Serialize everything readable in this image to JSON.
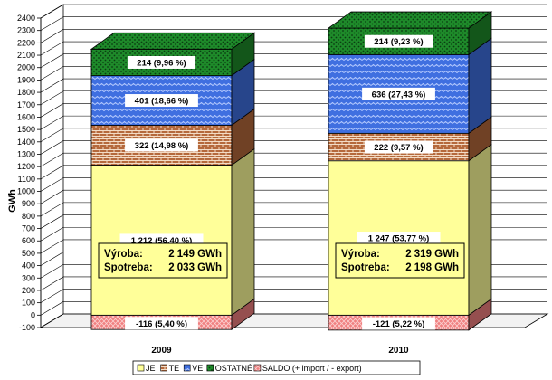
{
  "chart_data": {
    "type": "bar",
    "stacked": true,
    "three_d": true,
    "title": "",
    "xlabel": "",
    "ylabel": "GWh",
    "ylim": [
      -100,
      2400
    ],
    "ytick_step": 100,
    "grid": true,
    "legend_position": "bottom",
    "categories": [
      "2009",
      "2010"
    ],
    "series": [
      {
        "key": "je",
        "name": "JE",
        "color": "#ffff99",
        "pattern": "none",
        "values": [
          1212,
          1247
        ],
        "labels": [
          "1 212 (56,40 %)",
          "1 247 (53,77 %)"
        ]
      },
      {
        "key": "te",
        "name": "TE",
        "color": "#b5693c",
        "pattern": "bricks",
        "values": [
          322,
          222
        ],
        "labels": [
          "322 (14,98 %)",
          "222 (9,57 %)"
        ]
      },
      {
        "key": "ve",
        "name": "VE",
        "color": "#3f6fe0",
        "pattern": "waves",
        "values": [
          401,
          636
        ],
        "labels": [
          "401 (18,66 %)",
          "636 (27,43 %)"
        ]
      },
      {
        "key": "ostatne",
        "name": "OSTATNÉ",
        "color": "#1e8a2a",
        "pattern": "dots",
        "values": [
          214,
          214
        ],
        "labels": [
          "214 (9,96 %)",
          "214 (9,23 %)"
        ]
      },
      {
        "key": "saldo",
        "name": "SALDO (+ import / - export)",
        "color": "#f08080",
        "pattern": "cross",
        "values": [
          -116,
          -121
        ],
        "labels": [
          "-116 (5,40 %)",
          "-121 (5,22 %)"
        ]
      }
    ],
    "annotations": [
      {
        "lines": [
          [
            "Výroba:",
            "2 149 GWh"
          ],
          [
            "Spotreba:",
            "2 033 GWh"
          ]
        ]
      },
      {
        "lines": [
          [
            "Výroba:",
            "2 319 GWh"
          ],
          [
            "Spotreba:",
            "2 198 GWh"
          ]
        ]
      }
    ]
  }
}
